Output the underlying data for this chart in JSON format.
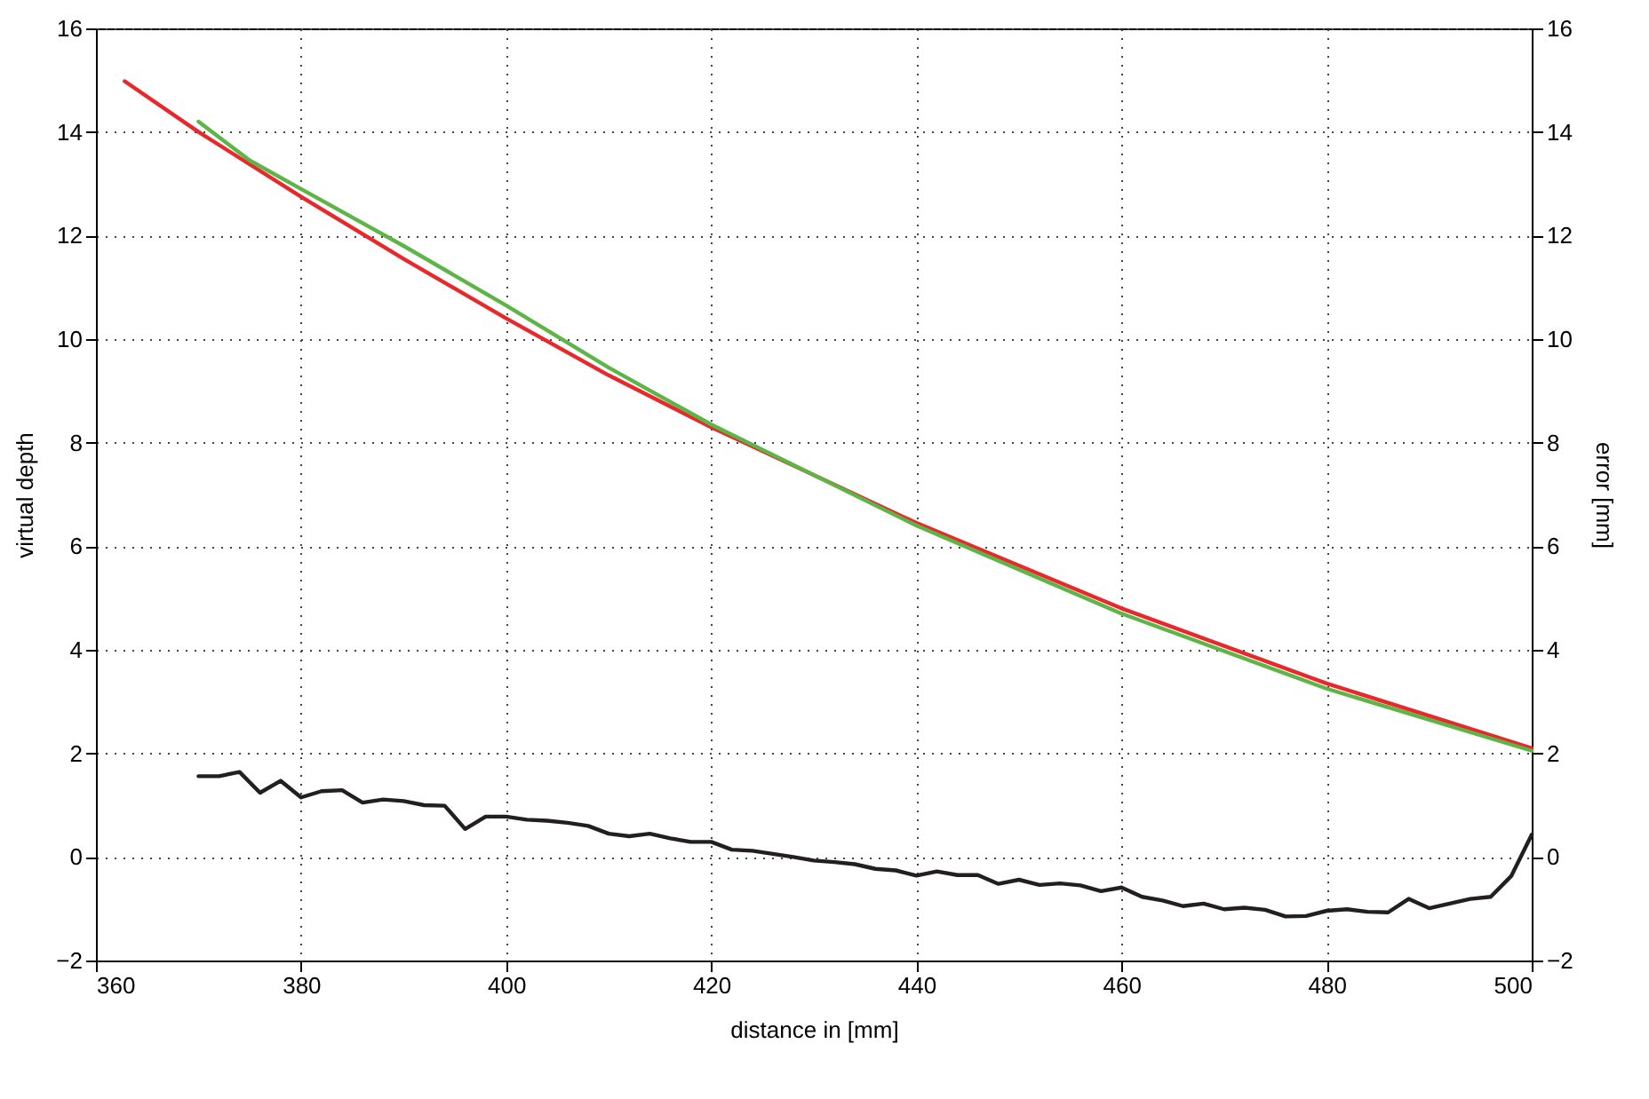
{
  "chart_data": {
    "type": "line",
    "xlabel": "distance in [mm]",
    "ylabel": "virtual depth",
    "y2label": "error [mm]",
    "xlim": [
      360,
      500
    ],
    "xticks": [
      360,
      380,
      400,
      420,
      440,
      460,
      480,
      500
    ],
    "ylim": [
      -2,
      16
    ],
    "yticks": [
      {
        "value": -2,
        "label": "−2"
      },
      0,
      2,
      4,
      6,
      8,
      10,
      12,
      14,
      16
    ],
    "y2lim": [
      -2,
      16
    ],
    "y2ticks": [
      {
        "value": -2,
        "label": "−2"
      },
      0,
      2,
      4,
      6,
      8,
      10,
      12,
      14,
      16
    ],
    "grid": true,
    "line_style": "solid",
    "marker": "none",
    "series": [
      {
        "color": "#e8282b",
        "x": [
          362.8,
          370,
          380,
          390,
          400,
          410,
          420,
          440,
          460,
          480,
          500
        ],
        "values": [
          14.98,
          14.0,
          12.75,
          11.55,
          10.4,
          9.3,
          8.3,
          6.45,
          4.8,
          3.35,
          2.1
        ]
      },
      {
        "color": "#5db547",
        "x": [
          370,
          375,
          380,
          390,
          400,
          410,
          420,
          440,
          460,
          480,
          500
        ],
        "values": [
          14.2,
          13.45,
          12.9,
          11.8,
          10.65,
          9.45,
          8.35,
          6.4,
          4.7,
          3.25,
          2.05
        ]
      },
      {
        "color": "#231f20",
        "axis": "y2",
        "x": [
          370,
          372,
          374,
          376,
          378,
          380,
          382,
          384,
          386,
          388,
          390,
          392,
          394,
          396,
          398,
          400,
          402,
          404,
          406,
          408,
          410,
          412,
          414,
          416,
          418,
          420,
          422,
          424,
          426,
          428,
          430,
          432,
          434,
          436,
          438,
          440,
          442,
          444,
          446,
          448,
          450,
          452,
          454,
          456,
          458,
          460,
          462,
          464,
          466,
          468,
          470,
          472,
          474,
          476,
          478,
          480,
          482,
          484,
          486,
          488,
          490,
          492,
          494,
          496,
          498,
          500
        ],
        "values": [
          1.56,
          1.56,
          1.64,
          1.24,
          1.47,
          1.15,
          1.27,
          1.29,
          1.05,
          1.11,
          1.08,
          1.0,
          0.99,
          0.54,
          0.78,
          0.78,
          0.72,
          0.7,
          0.66,
          0.6,
          0.45,
          0.4,
          0.45,
          0.36,
          0.29,
          0.29,
          0.14,
          0.12,
          0.06,
          0.0,
          -0.07,
          -0.1,
          -0.14,
          -0.23,
          -0.26,
          -0.36,
          -0.28,
          -0.35,
          -0.35,
          -0.52,
          -0.44,
          -0.54,
          -0.51,
          -0.55,
          -0.66,
          -0.59,
          -0.77,
          -0.84,
          -0.95,
          -0.9,
          -1.01,
          -0.98,
          -1.02,
          -1.15,
          -1.14,
          -1.04,
          -1.01,
          -1.06,
          -1.07,
          -0.81,
          -0.99,
          -0.9,
          -0.81,
          -0.77,
          -0.37,
          0.43
        ]
      }
    ]
  }
}
